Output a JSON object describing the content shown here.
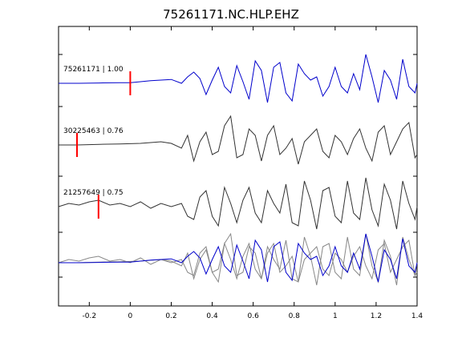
{
  "chart_data": {
    "type": "line",
    "title": "75261171.NC.HLP.EHZ",
    "xlabel": "",
    "ylabel": "",
    "xlim": [
      -0.35,
      1.4
    ],
    "xticks": [
      {
        "value": -0.2,
        "label": "-0.2"
      },
      {
        "value": 0,
        "label": "0"
      },
      {
        "value": 0.2,
        "label": "0.2"
      },
      {
        "value": 0.4,
        "label": "0.4"
      },
      {
        "value": 0.6,
        "label": "0.6"
      },
      {
        "value": 0.8,
        "label": "0.8"
      },
      {
        "value": 1.0,
        "label": "1"
      },
      {
        "value": 1.2,
        "label": "1.2"
      },
      {
        "value": 1.4,
        "label": "1.4"
      }
    ],
    "grid": false,
    "legend": "none",
    "colors": {
      "reference": "#0000cc",
      "other": "#333333",
      "overlay_other": "#888888",
      "pick": "#ff0000"
    },
    "traces": [
      {
        "label": "75261171 | 1.00",
        "color": "reference",
        "pick_x": 0.0,
        "x": [
          -0.35,
          -0.25,
          -0.15,
          -0.05,
          0.0,
          0.05,
          0.1,
          0.15,
          0.2,
          0.25,
          0.28,
          0.31,
          0.34,
          0.37,
          0.4,
          0.43,
          0.46,
          0.49,
          0.52,
          0.55,
          0.58,
          0.61,
          0.64,
          0.67,
          0.7,
          0.73,
          0.76,
          0.79,
          0.82,
          0.85,
          0.88,
          0.91,
          0.94,
          0.97,
          1.0,
          1.03,
          1.06,
          1.09,
          1.12,
          1.15,
          1.18,
          1.21,
          1.24,
          1.27,
          1.3,
          1.33,
          1.36,
          1.39,
          1.4
        ],
        "y": [
          0.0,
          0.0,
          0.01,
          0.02,
          0.02,
          0.05,
          0.08,
          0.1,
          0.12,
          0.0,
          0.2,
          0.35,
          0.15,
          -0.35,
          0.1,
          0.5,
          -0.1,
          -0.3,
          0.55,
          0.05,
          -0.5,
          0.7,
          0.4,
          -0.6,
          0.5,
          0.65,
          -0.3,
          -0.55,
          0.6,
          0.3,
          0.1,
          0.2,
          -0.4,
          -0.1,
          0.5,
          -0.1,
          -0.3,
          0.3,
          -0.2,
          0.9,
          0.2,
          -0.6,
          0.4,
          0.1,
          -0.5,
          0.75,
          -0.1,
          -0.3,
          0.0
        ]
      },
      {
        "label": "30225463 | 0.76",
        "color": "other",
        "pick_x": -0.26,
        "x": [
          -0.35,
          -0.26,
          -0.15,
          -0.05,
          0.05,
          0.15,
          0.2,
          0.25,
          0.28,
          0.31,
          0.34,
          0.37,
          0.4,
          0.43,
          0.46,
          0.49,
          0.52,
          0.55,
          0.58,
          0.61,
          0.64,
          0.67,
          0.7,
          0.73,
          0.76,
          0.79,
          0.82,
          0.85,
          0.88,
          0.91,
          0.94,
          0.97,
          1.0,
          1.03,
          1.06,
          1.09,
          1.12,
          1.15,
          1.18,
          1.21,
          1.24,
          1.27,
          1.3,
          1.33,
          1.36,
          1.39,
          1.4
        ],
        "y": [
          0.0,
          0.0,
          0.02,
          0.03,
          0.05,
          0.1,
          0.05,
          -0.1,
          0.3,
          -0.5,
          0.1,
          0.4,
          -0.3,
          -0.2,
          0.6,
          0.9,
          -0.4,
          -0.3,
          0.5,
          0.3,
          -0.5,
          0.3,
          0.6,
          -0.3,
          -0.1,
          0.2,
          -0.6,
          0.1,
          0.3,
          0.5,
          -0.2,
          -0.4,
          0.3,
          0.1,
          -0.3,
          0.2,
          0.5,
          -0.1,
          -0.5,
          0.4,
          0.6,
          -0.3,
          0.1,
          0.5,
          0.7,
          -0.4,
          -0.3
        ]
      },
      {
        "label": "21257649 | 0.75",
        "color": "other",
        "pick_x": -0.155,
        "x": [
          -0.35,
          -0.3,
          -0.25,
          -0.2,
          -0.155,
          -0.1,
          -0.05,
          0.0,
          0.05,
          0.1,
          0.15,
          0.2,
          0.25,
          0.28,
          0.31,
          0.34,
          0.37,
          0.4,
          0.43,
          0.46,
          0.49,
          0.52,
          0.55,
          0.58,
          0.61,
          0.64,
          0.67,
          0.7,
          0.73,
          0.76,
          0.79,
          0.82,
          0.85,
          0.88,
          0.91,
          0.94,
          0.97,
          1.0,
          1.03,
          1.06,
          1.09,
          1.12,
          1.15,
          1.18,
          1.21,
          1.24,
          1.27,
          1.3,
          1.33,
          1.36,
          1.39,
          1.4
        ],
        "y": [
          0.0,
          0.1,
          0.05,
          0.15,
          0.2,
          0.05,
          0.1,
          0.0,
          0.15,
          -0.05,
          0.1,
          0.0,
          0.1,
          -0.3,
          -0.4,
          0.3,
          0.5,
          -0.3,
          -0.6,
          0.6,
          0.1,
          -0.5,
          0.2,
          0.6,
          -0.2,
          -0.5,
          0.5,
          0.1,
          -0.2,
          0.7,
          -0.5,
          -0.6,
          0.8,
          0.2,
          -0.7,
          0.5,
          0.6,
          -0.3,
          -0.5,
          0.8,
          -0.2,
          -0.4,
          0.9,
          -0.1,
          -0.6,
          0.7,
          0.2,
          -0.7,
          0.8,
          0.1,
          -0.4,
          0.0
        ]
      }
    ]
  }
}
